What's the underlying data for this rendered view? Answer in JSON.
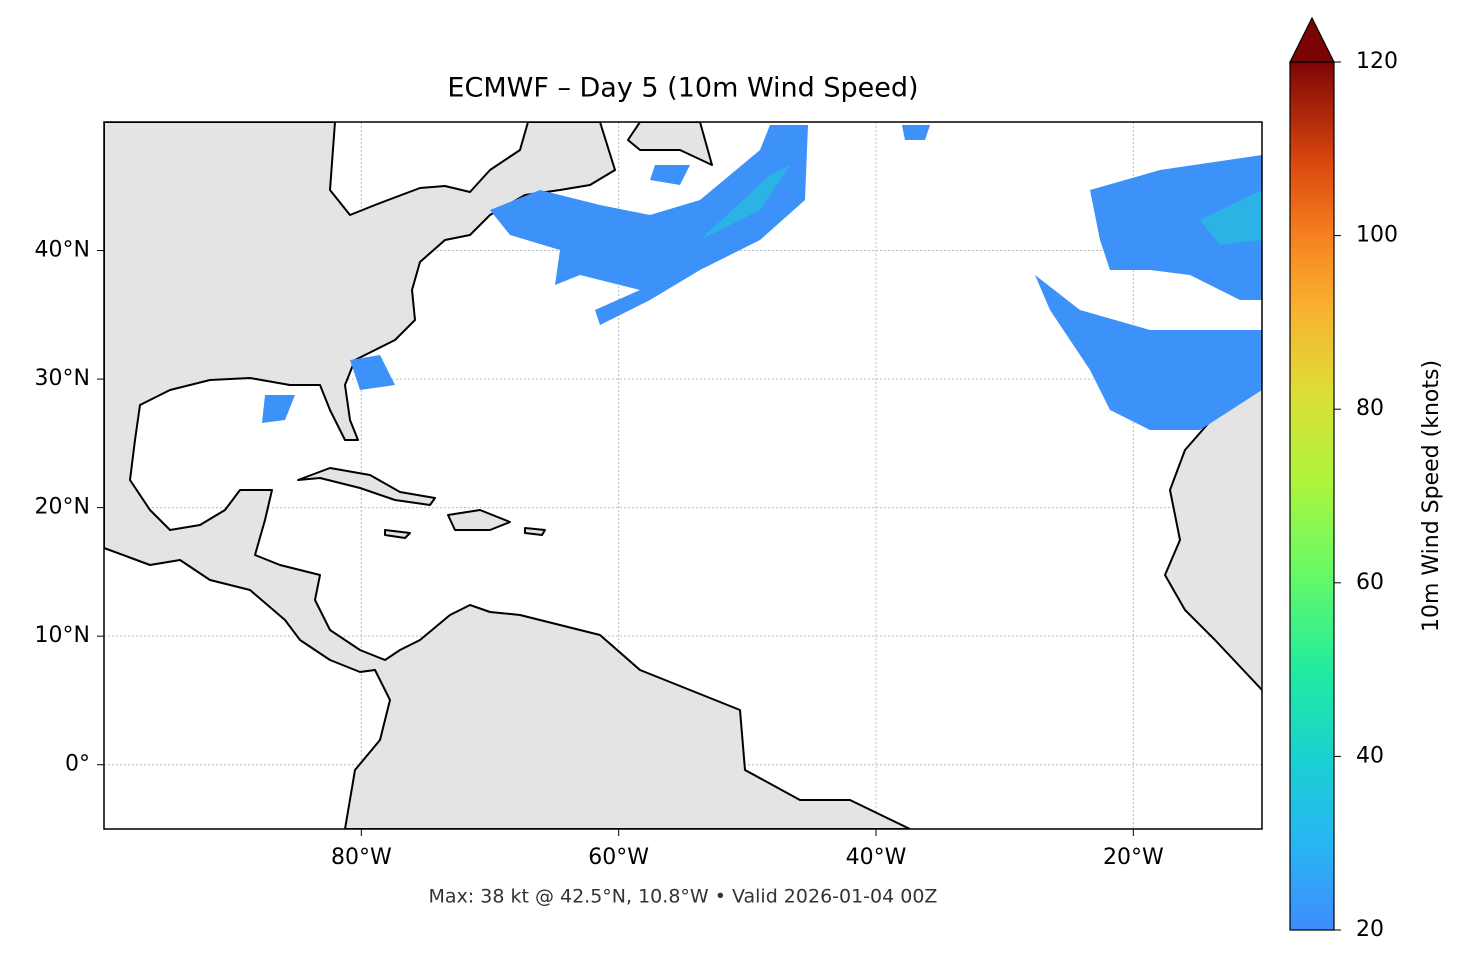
{
  "chart_data": {
    "type": "map",
    "title": "ECMWF – Day 5 (10m Wind Speed)",
    "footnote": "Max: 38 kt @ 42.5°N, 10.8°W • Valid 2026-01-04 00Z",
    "xlim": [
      -100,
      -10
    ],
    "ylim": [
      -5,
      50
    ],
    "xticks": [
      {
        "value": -80,
        "label": "80°W"
      },
      {
        "value": -60,
        "label": "60°W"
      },
      {
        "value": -40,
        "label": "40°W"
      },
      {
        "value": -20,
        "label": "20°W"
      }
    ],
    "yticks": [
      {
        "value": 0,
        "label": "0°"
      },
      {
        "value": 10,
        "label": "10°N"
      },
      {
        "value": 20,
        "label": "20°N"
      },
      {
        "value": 30,
        "label": "30°N"
      },
      {
        "value": 40,
        "label": "40°N"
      }
    ],
    "grid": true,
    "colorbar": {
      "label": "10m Wind Speed (knots)",
      "lim": [
        20,
        120
      ],
      "ticks": [
        20,
        40,
        60,
        80,
        100,
        120
      ],
      "extend_color": "#7a0403"
    }
  }
}
